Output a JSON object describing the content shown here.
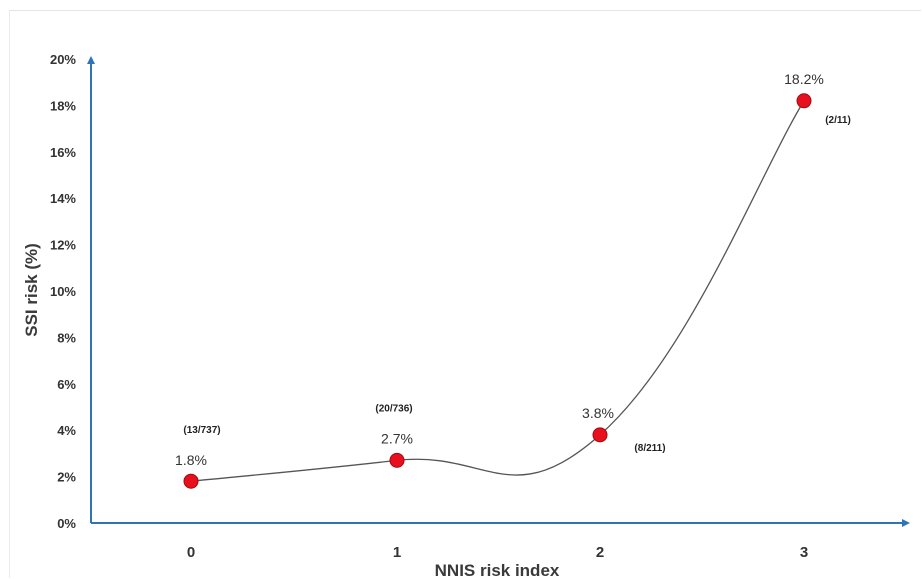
{
  "chart_data": {
    "type": "line",
    "title": "",
    "xlabel": "NNIS risk index",
    "ylabel": "SSI risk (%)",
    "categories": [
      "0",
      "1",
      "2",
      "3"
    ],
    "y_ticks": [
      "0%",
      "2%",
      "4%",
      "6%",
      "8%",
      "10%",
      "12%",
      "14%",
      "16%",
      "18%",
      "20%"
    ],
    "ylim": [
      0,
      20
    ],
    "series": [
      {
        "values": [
          1.8,
          2.7,
          3.8,
          18.2
        ],
        "value_labels": [
          "1.8%",
          "2.7%",
          "3.8%",
          "18.2%"
        ],
        "count_labels": [
          "(13/737)",
          "(20/736)",
          "(8/211)",
          "(2/11)"
        ]
      }
    ],
    "grid": false,
    "legend": "none",
    "colors": {
      "axis": "#2e75b6",
      "marker": "#e8101d",
      "line": "#555555"
    }
  }
}
